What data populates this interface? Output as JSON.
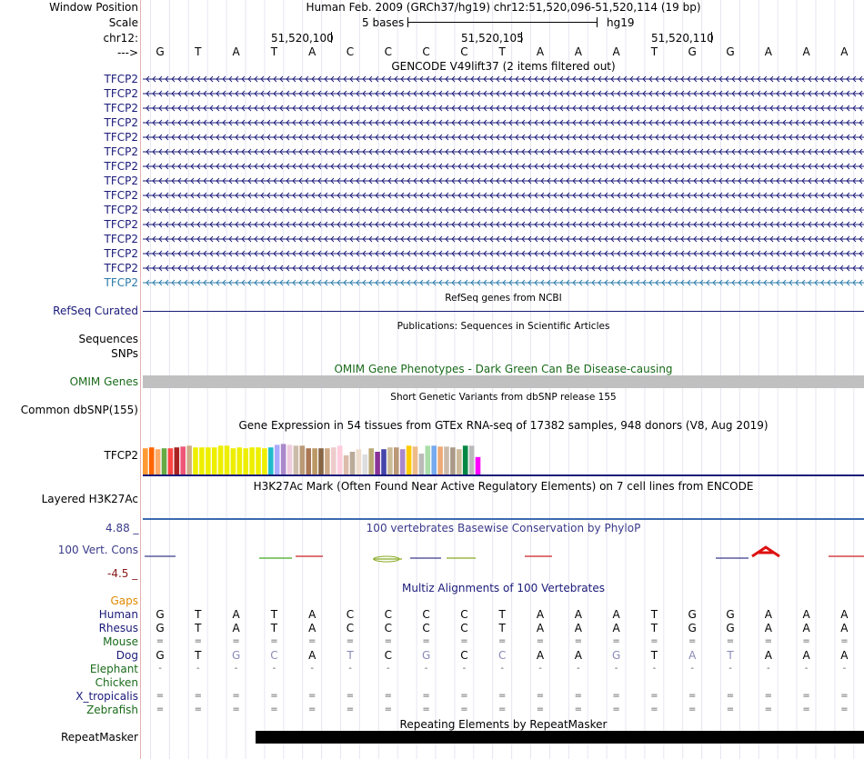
{
  "header": {
    "window_position_label": "Window Position",
    "scale_label": "Scale",
    "chrom_label": "chr12:",
    "strand_label": "--->",
    "assembly": "Human Feb. 2009 (GRCh37/hg19)   chr12:51,520,096-51,520,114 (19 bp)",
    "scale_text": "5 bases",
    "scale_db": "hg19",
    "positions": [
      "51,520,100",
      "51,520,105",
      "51,520,110"
    ]
  },
  "reference_bases": [
    "G",
    "T",
    "A",
    "T",
    "A",
    "C",
    "C",
    "C",
    "C",
    "T",
    "A",
    "A",
    "A",
    "T",
    "G",
    "G",
    "A",
    "A",
    "A"
  ],
  "gencode": {
    "title": "GENCODE V49lift37 (2 items filtered out)",
    "transcripts": [
      "TFCP2",
      "TFCP2",
      "TFCP2",
      "TFCP2",
      "TFCP2",
      "TFCP2",
      "TFCP2",
      "TFCP2",
      "TFCP2",
      "TFCP2",
      "TFCP2",
      "TFCP2",
      "TFCP2",
      "TFCP2",
      "TFCP2"
    ],
    "color_main": "#1a1a7a",
    "color_last": "#2a7aaa"
  },
  "refseq": {
    "title": "RefSeq genes from NCBI",
    "label": "RefSeq Curated"
  },
  "publications": {
    "title": "Publications: Sequences in Scientific Articles",
    "labels": [
      "Sequences",
      "SNPs"
    ]
  },
  "omim": {
    "title": "OMIM Gene Phenotypes - Dark Green Can Be Disease-causing",
    "label": "OMIM Genes",
    "color": "#1a6b1a"
  },
  "dbsnp": {
    "title": "Short Genetic Variants from dbSNP release 155",
    "label": "Common dbSNP(155)"
  },
  "gtex": {
    "title": "Gene Expression in 54 tissues from GTEx RNA-seq of 17382 samples, 948 donors (V8, Aug 2019)",
    "label": "TFCP2",
    "bars": [
      {
        "value": 0.6,
        "color": "#ff9933"
      },
      {
        "value": 0.62,
        "color": "#ff6600"
      },
      {
        "value": 0.58,
        "color": "#ffaa66"
      },
      {
        "value": 0.6,
        "color": "#66aa44"
      },
      {
        "value": 0.6,
        "color": "#ff4444"
      },
      {
        "value": 0.62,
        "color": "#aa2222"
      },
      {
        "value": 0.64,
        "color": "#ee5577"
      },
      {
        "value": 0.66,
        "color": "#ccaa88"
      },
      {
        "value": 0.62,
        "color": "#eeee00"
      },
      {
        "value": 0.62,
        "color": "#eeee00"
      },
      {
        "value": 0.62,
        "color": "#eeee00"
      },
      {
        "value": 0.62,
        "color": "#eeee00"
      },
      {
        "value": 0.66,
        "color": "#eeee00"
      },
      {
        "value": 0.66,
        "color": "#eeee00"
      },
      {
        "value": 0.6,
        "color": "#eeee00"
      },
      {
        "value": 0.62,
        "color": "#eeee00"
      },
      {
        "value": 0.6,
        "color": "#eeee00"
      },
      {
        "value": 0.62,
        "color": "#eeee00"
      },
      {
        "value": 0.62,
        "color": "#eeee00"
      },
      {
        "value": 0.6,
        "color": "#eeee00"
      },
      {
        "value": 0.62,
        "color": "#22bbcc"
      },
      {
        "value": 0.68,
        "color": "#aaaaff"
      },
      {
        "value": 0.7,
        "color": "#aa88cc"
      },
      {
        "value": 0.68,
        "color": "#eeccdd"
      },
      {
        "value": 0.66,
        "color": "#ccbbaa"
      },
      {
        "value": 0.66,
        "color": "#bb9977"
      },
      {
        "value": 0.6,
        "color": "#aa7755"
      },
      {
        "value": 0.6,
        "color": "#bb9966"
      },
      {
        "value": 0.6,
        "color": "#886644"
      },
      {
        "value": 0.6,
        "color": "#ccaa88"
      },
      {
        "value": 0.62,
        "color": "#eecccc"
      },
      {
        "value": 0.66,
        "color": "#ffccdd"
      },
      {
        "value": 0.44,
        "color": "#ddbbaa"
      },
      {
        "value": 0.52,
        "color": "#bbaa99"
      },
      {
        "value": 0.58,
        "color": "#eeddcc"
      },
      {
        "value": 0.46,
        "color": "#dddddd"
      },
      {
        "value": 0.6,
        "color": "#bbaa77"
      },
      {
        "value": 0.52,
        "color": "#883399"
      },
      {
        "value": 0.58,
        "color": "#4444aa"
      },
      {
        "value": 0.62,
        "color": "#ccbb99"
      },
      {
        "value": 0.62,
        "color": "#bb9977"
      },
      {
        "value": 0.58,
        "color": "#aa88cc"
      },
      {
        "value": 0.66,
        "color": "#ffcc00"
      },
      {
        "value": 0.64,
        "color": "#eebb88"
      },
      {
        "value": 0.48,
        "color": "#bbbbbb"
      },
      {
        "value": 0.66,
        "color": "#aaddaa"
      },
      {
        "value": 0.66,
        "color": "#77aaee"
      },
      {
        "value": 0.64,
        "color": "#eeaa77"
      },
      {
        "value": 0.64,
        "color": "#ccbbaa"
      },
      {
        "value": 0.62,
        "color": "#aa9988"
      },
      {
        "value": 0.58,
        "color": "#ccbb99"
      },
      {
        "value": 0.66,
        "color": "#008844"
      },
      {
        "value": 0.66,
        "color": "#bbbbbb"
      },
      {
        "value": 0.4,
        "color": "#ff00ff"
      }
    ]
  },
  "h3k27ac": {
    "title": "H3K27Ac Mark (Often Found Near Active Regulatory Elements) on 7 cell lines from ENCODE",
    "label": "Layered H3K27Ac"
  },
  "phylop": {
    "title": "100 vertebrates Basewise Conservation by PhyloP",
    "label": "100 Vert. Cons",
    "ymax": "4.88 _",
    "ymin": "-4.5 _",
    "color": "#3a3a8a"
  },
  "multiz": {
    "title": "Multiz Alignments of 100 Vertebrates",
    "gaps_label": "Gaps",
    "species": [
      {
        "name": "Human",
        "color": "#1a1a7a",
        "seq": [
          "G",
          "T",
          "A",
          "T",
          "A",
          "C",
          "C",
          "C",
          "C",
          "T",
          "A",
          "A",
          "A",
          "T",
          "G",
          "G",
          "A",
          "A",
          "A"
        ]
      },
      {
        "name": "Rhesus",
        "color": "#1a1a7a",
        "seq": [
          "G",
          "T",
          "A",
          "T",
          "A",
          "C",
          "C",
          "C",
          "C",
          "T",
          "A",
          "A",
          "A",
          "T",
          "G",
          "G",
          "A",
          "A",
          "A"
        ]
      },
      {
        "name": "Mouse",
        "color": "#1a6b1a",
        "seq": [
          "=",
          "=",
          "=",
          "=",
          "=",
          "=",
          "=",
          "=",
          "=",
          "=",
          "=",
          "=",
          "=",
          "=",
          "=",
          "=",
          "=",
          "=",
          "="
        ]
      },
      {
        "name": "Dog",
        "color": "#1a1a7a",
        "seq": [
          "G",
          "T",
          "G",
          "C",
          "A",
          "T",
          "C",
          "G",
          "C",
          "C",
          "A",
          "A",
          "G",
          "T",
          "A",
          "T",
          "A",
          "A",
          "A"
        ]
      },
      {
        "name": "Elephant",
        "color": "#1a6b1a",
        "seq": [
          "-",
          "-",
          "-",
          "-",
          "-",
          "-",
          "-",
          "-",
          "-",
          "-",
          "-",
          "-",
          "-",
          "-",
          "-",
          "-",
          "-",
          "-",
          "-"
        ]
      },
      {
        "name": "Chicken",
        "color": "#1a6b1a",
        "seq": [
          "",
          "",
          "",
          "",
          "",
          "",
          "",
          "",
          "",
          "",
          "",
          "",
          "",
          "",
          "",
          "",
          "",
          "",
          ""
        ]
      },
      {
        "name": "X_tropicalis",
        "color": "#1a1a7a",
        "seq": [
          "=",
          "=",
          "=",
          "=",
          "=",
          "=",
          "=",
          "=",
          "=",
          "=",
          "=",
          "=",
          "=",
          "=",
          "=",
          "=",
          "=",
          "=",
          "="
        ]
      },
      {
        "name": "Zebrafish",
        "color": "#1a6b1a",
        "seq": [
          "=",
          "=",
          "=",
          "=",
          "=",
          "=",
          "=",
          "=",
          "=",
          "=",
          "=",
          "=",
          "=",
          "=",
          "=",
          "=",
          "=",
          "=",
          "="
        ]
      }
    ]
  },
  "repeatmasker": {
    "title": "Repeating Elements by RepeatMasker",
    "label": "RepeatMasker"
  }
}
